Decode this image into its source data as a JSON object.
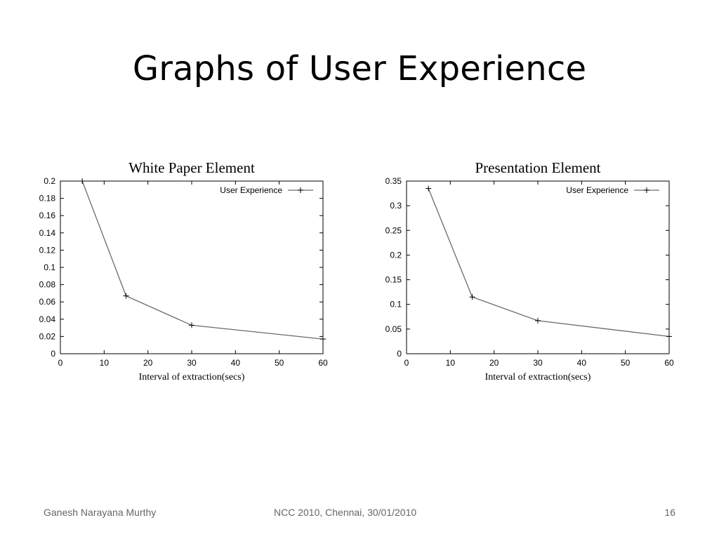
{
  "slide": {
    "title": "Graphs of User Experience"
  },
  "footer": {
    "author": "Ganesh Narayana Murthy",
    "event": "NCC 2010, Chennai, 30/01/2010",
    "page_number": "16"
  },
  "colors": {
    "series_line": "#6b6b6b",
    "axis": "#000000",
    "footer_text": "#666666"
  },
  "chart_data": [
    {
      "type": "line",
      "title": "White Paper Element",
      "xlabel": "Interval of extraction(secs)",
      "ylabel": "",
      "xlim": [
        0,
        60
      ],
      "ylim": [
        0,
        0.2
      ],
      "xticks": [
        0,
        10,
        20,
        30,
        40,
        50,
        60
      ],
      "yticks": [
        0,
        0.02,
        0.04,
        0.06,
        0.08,
        0.1,
        0.12,
        0.14,
        0.16,
        0.18,
        0.2
      ],
      "grid": false,
      "legend_position": "top-right",
      "series": [
        {
          "name": "User Experience",
          "marker": "+",
          "x": [
            5,
            15,
            30,
            60
          ],
          "y": [
            0.2,
            0.067,
            0.033,
            0.017
          ]
        }
      ]
    },
    {
      "type": "line",
      "title": "Presentation Element",
      "xlabel": "Interval of extraction(secs)",
      "ylabel": "",
      "xlim": [
        0,
        60
      ],
      "ylim": [
        0,
        0.35
      ],
      "xticks": [
        0,
        10,
        20,
        30,
        40,
        50,
        60
      ],
      "yticks": [
        0,
        0.05,
        0.1,
        0.15,
        0.2,
        0.25,
        0.3,
        0.35
      ],
      "grid": false,
      "legend_position": "top-right",
      "series": [
        {
          "name": "User Experience",
          "marker": "+",
          "x": [
            5,
            15,
            30,
            60
          ],
          "y": [
            0.335,
            0.115,
            0.067,
            0.035
          ]
        }
      ]
    }
  ]
}
